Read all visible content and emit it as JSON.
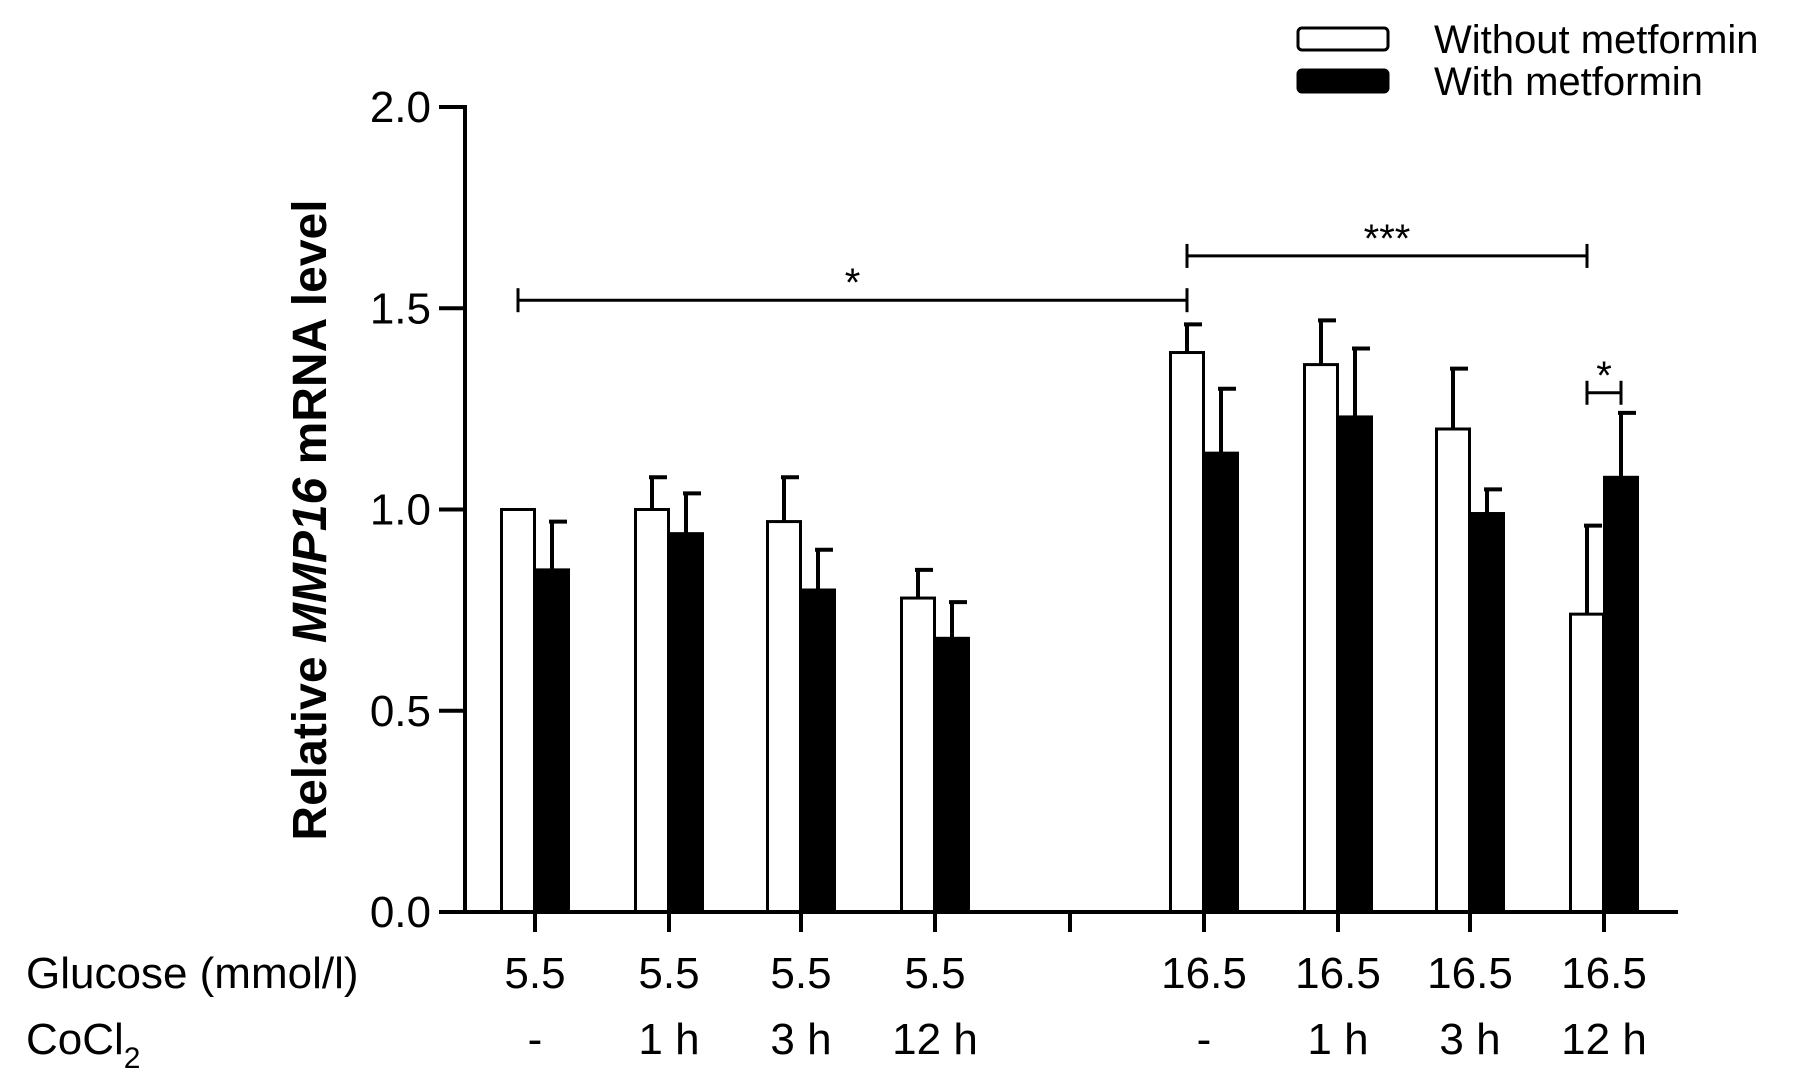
{
  "chart_data": {
    "type": "bar",
    "ylabel": {
      "prefix": "Relative ",
      "italic": "MMP16",
      "suffix": " mRNA level"
    },
    "ylim": [
      0,
      2.0
    ],
    "yticks": [
      0.0,
      0.5,
      1.0,
      1.5,
      2.0
    ],
    "ytick_labels": [
      "0.0",
      "0.5",
      "1.0",
      "1.5",
      "2.0"
    ],
    "row_labels": {
      "glucose": "Glucose (mmol/l)",
      "cocl2_main": "CoCl",
      "cocl2_sub": "2"
    },
    "categories": [
      {
        "glucose": "5.5",
        "cocl2": "-"
      },
      {
        "glucose": "5.5",
        "cocl2": "1 h"
      },
      {
        "glucose": "5.5",
        "cocl2": "3 h"
      },
      {
        "glucose": "5.5",
        "cocl2": "12 h"
      },
      {
        "glucose": "16.5",
        "cocl2": "-"
      },
      {
        "glucose": "16.5",
        "cocl2": "1 h"
      },
      {
        "glucose": "16.5",
        "cocl2": "3 h"
      },
      {
        "glucose": "16.5",
        "cocl2": "12 h"
      }
    ],
    "series": [
      {
        "name": "Without metformin",
        "fill": "#ffffff",
        "values": [
          1.0,
          1.0,
          0.97,
          0.78,
          1.39,
          1.36,
          1.2,
          0.74
        ],
        "errors": [
          0.0,
          0.08,
          0.11,
          0.07,
          0.07,
          0.11,
          0.15,
          0.22
        ]
      },
      {
        "name": "With metformin",
        "fill": "#000000",
        "values": [
          0.85,
          0.94,
          0.8,
          0.68,
          1.14,
          1.23,
          0.99,
          1.08
        ],
        "errors": [
          0.12,
          0.1,
          0.1,
          0.09,
          0.16,
          0.17,
          0.06,
          0.16
        ]
      }
    ],
    "significance": [
      {
        "from_cat": 0,
        "from_series": 0,
        "to_cat": 4,
        "to_series": 0,
        "y": 1.52,
        "label": "*"
      },
      {
        "from_cat": 4,
        "from_series": 0,
        "to_cat": 7,
        "to_series": 0,
        "y": 1.63,
        "label": "***"
      },
      {
        "from_cat": 7,
        "from_series": 0,
        "to_cat": 7,
        "to_series": 1,
        "y": 1.29,
        "label": "*"
      }
    ],
    "legend_position": "top-right"
  }
}
